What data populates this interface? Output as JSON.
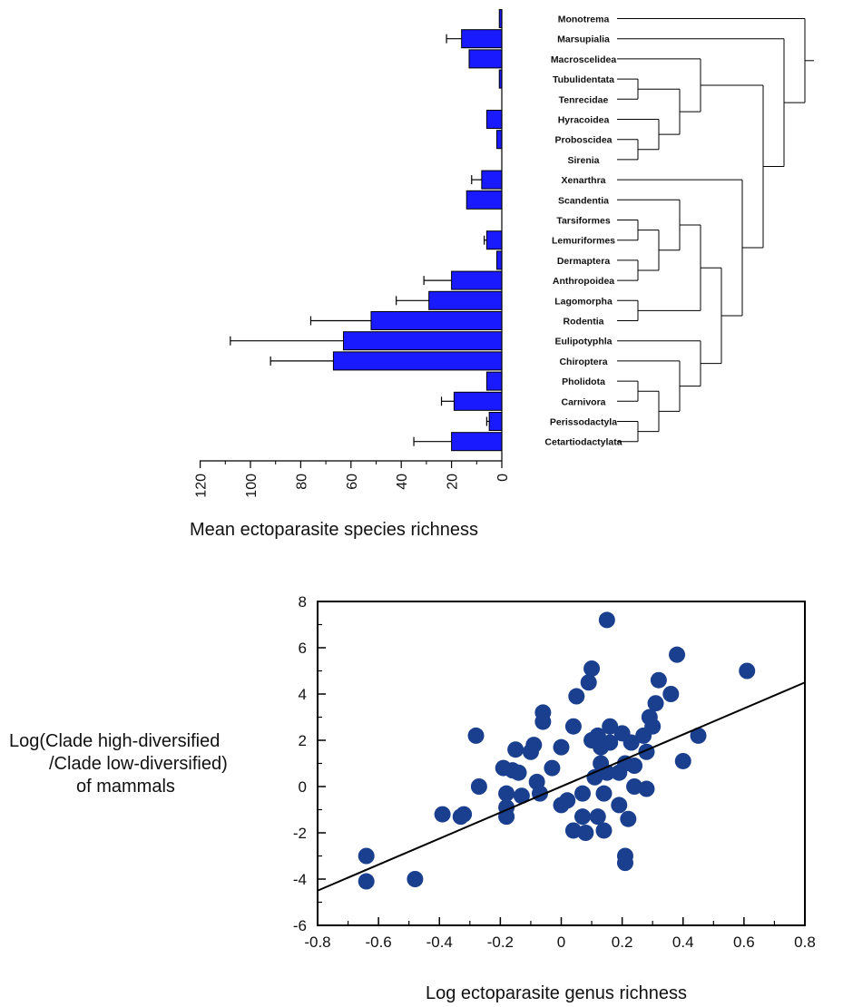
{
  "chart_data": [
    {
      "type": "bar",
      "orientation": "horizontal",
      "xlabel": "Mean ectoparasite species richness",
      "xlim": [
        0,
        120
      ],
      "xticks": [
        "120",
        "100",
        "80",
        "60",
        "40",
        "20",
        "0"
      ],
      "categories": [
        "Monotrema",
        "Marsupialia",
        "Macroscelidea",
        "Tubulidentata",
        "Tenrecidae",
        "Hyracoidea",
        "Proboscidea",
        "Sirenia",
        "Xenarthra",
        "Scandentia",
        "Tarsiformes",
        "Lemuriformes",
        "Dermaptera",
        "Anthropoidea",
        "Lagomorpha",
        "Rodentia",
        "Eulipotyphla",
        "Chiroptera",
        "Pholidota",
        "Carnivora",
        "Perissodactyla",
        "Cetartiodactylata"
      ],
      "values": [
        1,
        16,
        13,
        1,
        0,
        6,
        2,
        0,
        8,
        14,
        0,
        6,
        2,
        20,
        29,
        52,
        63,
        67,
        6,
        19,
        5,
        20
      ],
      "error": [
        0,
        6,
        0,
        0,
        0,
        0,
        0,
        0,
        4,
        0,
        0,
        1,
        0,
        11,
        13,
        24,
        45,
        25,
        0,
        5,
        1,
        15
      ],
      "bar_color": "#1a1aff",
      "tree": "(Monotrema,(Marsupialia,((Macroscelidea,((Tubulidentata,Tenrecidae),(Hyracoidea,(Proboscidea,Sirenia)))),(Xenarthra,(((Scandentia,((Tarsiformes,Lemuriformes),(Dermaptera,Anthropoidea))),(Lagomorpha,Rodentia)),(Eulipotyphla,(Chiroptera,((Pholidota,Carnivora),(Perissodactyla,Cetartiodactylata)))))))))"
    },
    {
      "type": "scatter",
      "xlabel": "Log ectoparasite genus richness",
      "ylabel": [
        "Log(Clade high-diversified",
        "/Clade low-diversified)",
        "of mammals"
      ],
      "xlim": [
        -0.8,
        0.8
      ],
      "ylim": [
        -6,
        8
      ],
      "xticks": [
        "-0.8",
        "-0.6",
        "-0.4",
        "-0.2",
        "0",
        "0.2",
        "0.4",
        "0.6",
        "0.8"
      ],
      "yticks": [
        "-6",
        "-4",
        "-2",
        "0",
        "2",
        "4",
        "6",
        "8"
      ],
      "point_color": "#1a3f8f",
      "trendline": {
        "x": [
          -0.8,
          0.8
        ],
        "y": [
          -4.5,
          4.5
        ]
      },
      "points": [
        {
          "x": 0.15,
          "y": 7.2
        },
        {
          "x": 0.38,
          "y": 5.7
        },
        {
          "x": 0.61,
          "y": 5.0
        },
        {
          "x": 0.1,
          "y": 5.1
        },
        {
          "x": 0.32,
          "y": 4.6
        },
        {
          "x": 0.09,
          "y": 4.5
        },
        {
          "x": 0.36,
          "y": 4.0
        },
        {
          "x": 0.05,
          "y": 3.9
        },
        {
          "x": 0.31,
          "y": 3.6
        },
        {
          "x": -0.06,
          "y": 3.2
        },
        {
          "x": 0.29,
          "y": 3.0
        },
        {
          "x": -0.06,
          "y": 2.8
        },
        {
          "x": 0.3,
          "y": 2.6
        },
        {
          "x": 0.04,
          "y": 2.6
        },
        {
          "x": 0.16,
          "y": 2.6
        },
        {
          "x": 0.2,
          "y": 2.3
        },
        {
          "x": 0.12,
          "y": 2.2
        },
        {
          "x": 0.27,
          "y": 2.2
        },
        {
          "x": 0.45,
          "y": 2.2
        },
        {
          "x": -0.28,
          "y": 2.2
        },
        {
          "x": 0.1,
          "y": 2.0
        },
        {
          "x": 0.16,
          "y": 1.9
        },
        {
          "x": 0.23,
          "y": 1.9
        },
        {
          "x": -0.09,
          "y": 1.8
        },
        {
          "x": 0.13,
          "y": 1.7
        },
        {
          "x": 0.0,
          "y": 1.7
        },
        {
          "x": -0.15,
          "y": 1.6
        },
        {
          "x": -0.1,
          "y": 1.5
        },
        {
          "x": 0.28,
          "y": 1.5
        },
        {
          "x": 0.4,
          "y": 1.1
        },
        {
          "x": 0.13,
          "y": 1.0
        },
        {
          "x": 0.21,
          "y": 1.0
        },
        {
          "x": 0.24,
          "y": 0.9
        },
        {
          "x": -0.19,
          "y": 0.8
        },
        {
          "x": -0.03,
          "y": 0.8
        },
        {
          "x": -0.16,
          "y": 0.7
        },
        {
          "x": -0.14,
          "y": 0.6
        },
        {
          "x": 0.15,
          "y": 0.6
        },
        {
          "x": 0.19,
          "y": 0.6
        },
        {
          "x": 0.11,
          "y": 0.4
        },
        {
          "x": -0.08,
          "y": 0.2
        },
        {
          "x": -0.27,
          "y": 0.0
        },
        {
          "x": 0.24,
          "y": 0.0
        },
        {
          "x": 0.28,
          "y": -0.1
        },
        {
          "x": -0.18,
          "y": -0.3
        },
        {
          "x": -0.07,
          "y": -0.3
        },
        {
          "x": 0.07,
          "y": -0.3
        },
        {
          "x": 0.14,
          "y": -0.3
        },
        {
          "x": -0.13,
          "y": -0.4
        },
        {
          "x": 0.02,
          "y": -0.6
        },
        {
          "x": 0.0,
          "y": -0.8
        },
        {
          "x": 0.19,
          "y": -0.8
        },
        {
          "x": -0.18,
          "y": -0.9
        },
        {
          "x": -0.39,
          "y": -1.2
        },
        {
          "x": -0.32,
          "y": -1.2
        },
        {
          "x": -0.33,
          "y": -1.3
        },
        {
          "x": -0.18,
          "y": -1.3
        },
        {
          "x": 0.07,
          "y": -1.3
        },
        {
          "x": 0.12,
          "y": -1.3
        },
        {
          "x": 0.22,
          "y": -1.4
        },
        {
          "x": 0.04,
          "y": -1.9
        },
        {
          "x": 0.08,
          "y": -2.0
        },
        {
          "x": 0.14,
          "y": -1.9
        },
        {
          "x": 0.21,
          "y": -3.0
        },
        {
          "x": 0.21,
          "y": -3.3
        },
        {
          "x": -0.64,
          "y": -3.0
        },
        {
          "x": -0.64,
          "y": -4.1
        },
        {
          "x": -0.48,
          "y": -4.0
        }
      ]
    }
  ]
}
